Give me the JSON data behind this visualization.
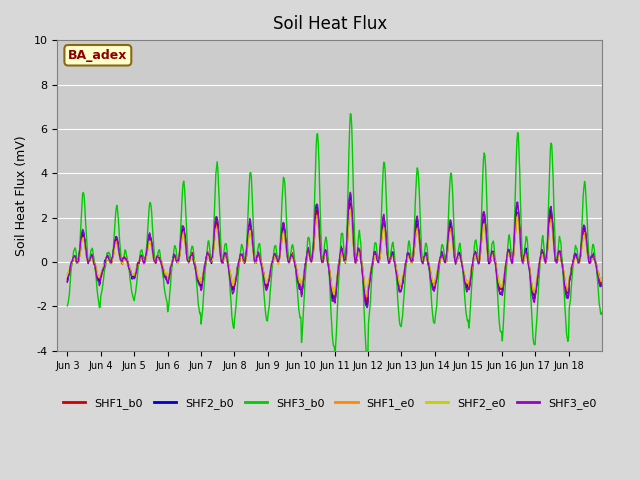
{
  "title": "Soil Heat Flux",
  "ylabel": "Soil Heat Flux (mV)",
  "ylim": [
    -4,
    10
  ],
  "yticks": [
    -4,
    -2,
    0,
    2,
    4,
    6,
    8,
    10
  ],
  "fig_bg_color": "#d8d8d8",
  "plot_bg_color": "#cccccc",
  "annotation_text": "BA_adex",
  "annotation_bg": "#ffffcc",
  "annotation_fg": "#8b0000",
  "annotation_edge": "#8b6914",
  "series_colors": [
    "#cc0000",
    "#0000cc",
    "#00cc00",
    "#ff8800",
    "#cccc00",
    "#9900cc"
  ],
  "series_labels": [
    "SHF1_b0",
    "SHF2_b0",
    "SHF3_b0",
    "SHF1_e0",
    "SHF2_e0",
    "SHF3_e0"
  ],
  "xtick_labels": [
    "Jun 3",
    "Jun 4",
    "Jun 5",
    "Jun 6",
    "Jun 7",
    "Jun 8",
    "Jun 9",
    "Jun 10",
    "Jun 11",
    "Jun 12",
    "Jun 13",
    "Jun 14",
    "Jun 15",
    "Jun 16",
    "Jun 17",
    "Jun 18"
  ],
  "n_days": 16,
  "points_per_day": 48,
  "day_amplitudes": [
    0.7,
    0.55,
    0.6,
    0.8,
    1.0,
    0.9,
    0.85,
    1.3,
    1.5,
    1.0,
    0.95,
    0.9,
    1.1,
    1.3,
    1.2,
    0.8
  ],
  "series_scales": [
    1.8,
    2.0,
    4.5,
    1.6,
    1.5,
    2.1
  ],
  "series_phases": [
    0.0,
    0.01,
    -0.005,
    0.005,
    0.008,
    0.012
  ],
  "noise_scale": 0.05,
  "grid_color": "#ffffff",
  "spine_color": "gray"
}
